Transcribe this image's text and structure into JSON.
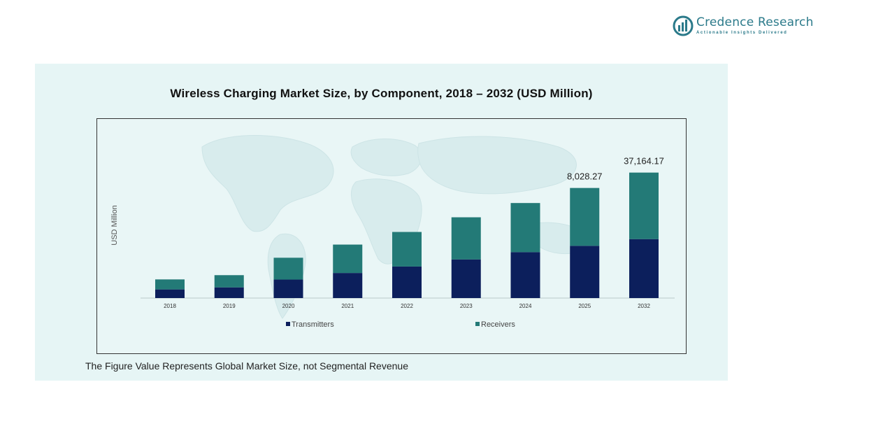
{
  "brand": {
    "name": "Credence Research",
    "tagline": "Actionable Insights Delivered"
  },
  "footnote": "The Figure Value Represents Global Market Size, not Segmental Revenue",
  "colors": {
    "transmitters": "#0c1f5c",
    "receivers": "#237a77",
    "panel_background": "#e6f5f5",
    "brand": "#2b7a8a"
  },
  "chart_data": {
    "type": "bar",
    "stacked": true,
    "title": "Wireless Charging Market Size, by Component, 2018 – 2032 (USD Million)",
    "xlabel": "",
    "ylabel": "USD Million",
    "categories": [
      "2018",
      "2019",
      "2020",
      "2021",
      "2022",
      "2023",
      "2024",
      "2025",
      "2032"
    ],
    "series": [
      {
        "name": "Transmitters",
        "values": [
          630,
          780,
          1350,
          1830,
          2300,
          2820,
          3350,
          3810,
          4300
        ]
      },
      {
        "name": "Receivers",
        "values": [
          730,
          890,
          1590,
          2070,
          2520,
          3070,
          3580,
          4218.27,
          4850
        ]
      }
    ],
    "totals_labels": [
      {
        "category": "2025",
        "label": "8,028.27"
      },
      {
        "category": "2032",
        "label": "37,164.17"
      }
    ],
    "ylim": [
      0,
      10000
    ],
    "grid": false,
    "legend": "bottom"
  }
}
